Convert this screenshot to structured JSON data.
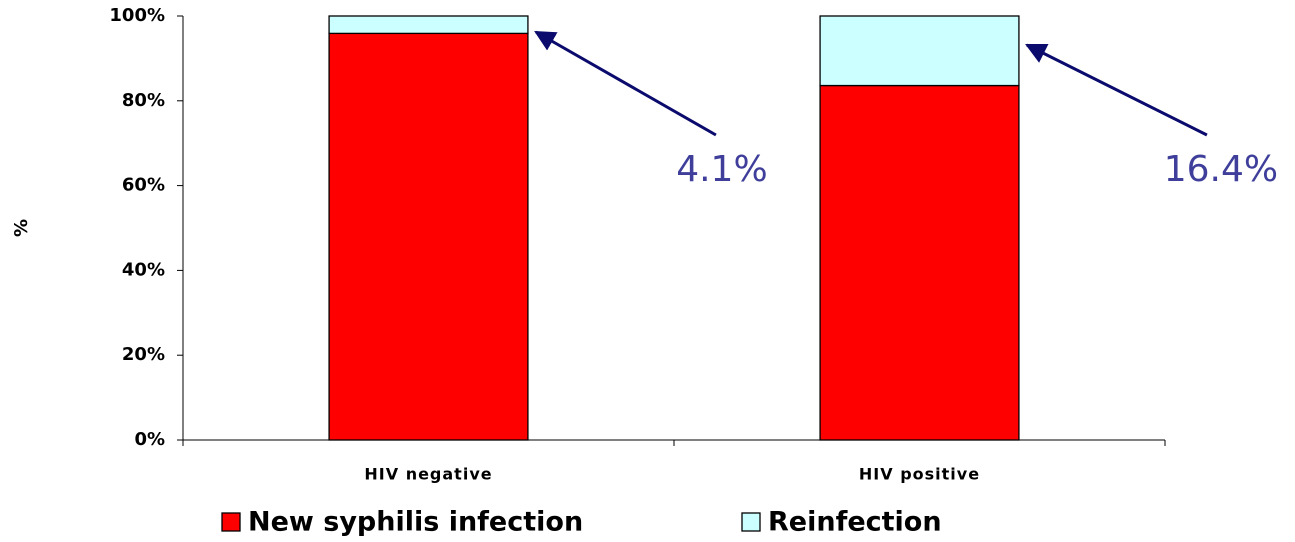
{
  "chart_data": {
    "type": "stacked_bar",
    "ylabel": "%",
    "categories": [
      "HIV negative",
      "HIV positive"
    ],
    "series": [
      {
        "name": "New syphilis infection",
        "color": "#ff0000",
        "values": [
          95.9,
          83.6
        ]
      },
      {
        "name": "Reinfection",
        "color": "#ccffff",
        "values": [
          4.1,
          16.4
        ],
        "value_labels": [
          "4.1%",
          "16.4%"
        ]
      }
    ],
    "ylim": [
      0,
      100
    ],
    "yticks": [
      {
        "value": 0,
        "label": "0%"
      },
      {
        "value": 20,
        "label": "20%"
      },
      {
        "value": 40,
        "label": "40%"
      },
      {
        "value": 60,
        "label": "60%"
      },
      {
        "value": 80,
        "label": "80%"
      },
      {
        "value": 100,
        "label": "100%"
      }
    ],
    "legend": "bottom"
  }
}
